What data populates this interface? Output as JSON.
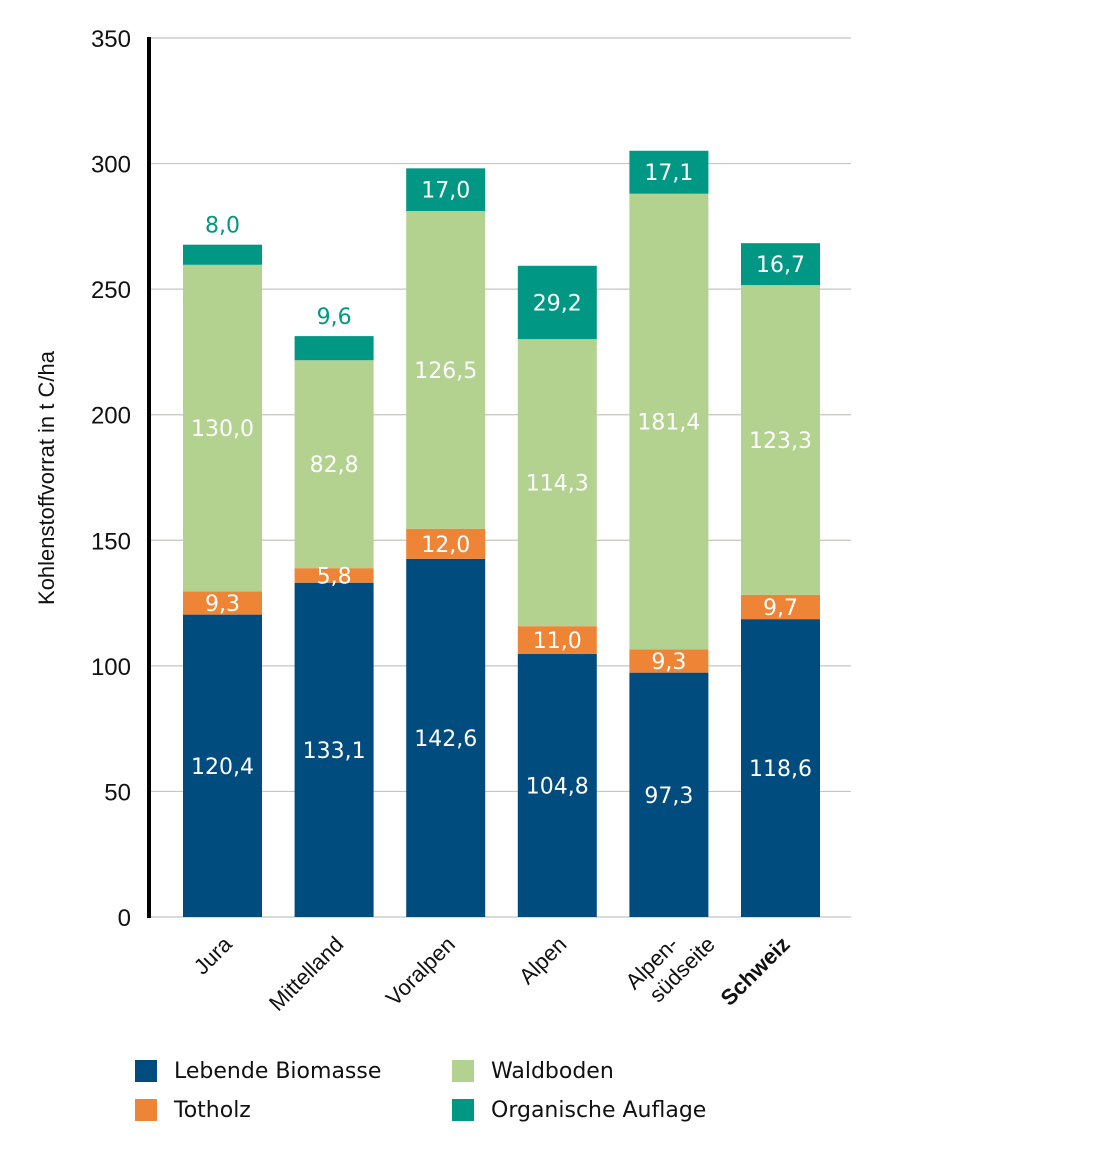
{
  "chart_data": {
    "type": "bar",
    "stacked": true,
    "title": "",
    "xlabel": "",
    "ylabel": "Kohlenstoffvorrat in t C/ha",
    "ylim": [
      0,
      350
    ],
    "yticks": [
      0,
      50,
      100,
      150,
      200,
      250,
      300,
      350
    ],
    "ytick_labels": [
      "0",
      "50",
      "100",
      "150",
      "200",
      "250",
      "300",
      "350"
    ],
    "grid": true,
    "legend_position": "bottom",
    "categories": [
      "Jura",
      "Mittelland",
      "Voralpen",
      "Alpen",
      "Alpen-\nsüdseite",
      "Schweiz"
    ],
    "category_lines": [
      [
        "Jura"
      ],
      [
        "Mittelland"
      ],
      [
        "Voralpen"
      ],
      [
        "Alpen"
      ],
      [
        "Alpen-",
        "südseite"
      ],
      [
        "Schweiz"
      ]
    ],
    "bold_categories": [
      "Schweiz"
    ],
    "series": [
      {
        "name": "Lebende Biomasse",
        "color": "#004c7e",
        "label_color": "#ffffff",
        "values": [
          120.4,
          133.1,
          142.6,
          104.8,
          97.3,
          118.6
        ],
        "labels": [
          "120,4",
          "133,1",
          "142,6",
          "104,8",
          "97,3",
          "118,6"
        ]
      },
      {
        "name": "Totholz",
        "color": "#ee8536",
        "label_color": "#ffffff",
        "values": [
          9.3,
          5.8,
          12.0,
          11.0,
          9.3,
          9.7
        ],
        "labels": [
          "9,3",
          "5,8",
          "12,0",
          "11,0",
          "9,3",
          "9,7"
        ]
      },
      {
        "name": "Waldboden",
        "color": "#b3d28f",
        "label_color": "#ffffff",
        "values": [
          130.0,
          82.8,
          126.5,
          114.3,
          181.4,
          123.3
        ],
        "labels": [
          "130,0",
          "82,8",
          "126,5",
          "114,3",
          "181,4",
          "123,3"
        ]
      },
      {
        "name": "Organische Auflage",
        "color": "#009784",
        "label_color": "#ffffff",
        "outside_label_color": "#009784",
        "values": [
          8.0,
          9.6,
          17.0,
          29.2,
          17.1,
          16.7
        ],
        "labels": [
          "8,0",
          "9,6",
          "17,0",
          "29,2",
          "17,1",
          "16,7"
        ],
        "label_outside": [
          true,
          true,
          false,
          false,
          false,
          false
        ]
      }
    ]
  },
  "legend": {
    "items": [
      {
        "label": "Lebende Biomasse",
        "color": "#004c7e"
      },
      {
        "label": "Waldboden",
        "color": "#b3d28f"
      },
      {
        "label": "Totholz",
        "color": "#ee8536"
      },
      {
        "label": "Organische Auflage",
        "color": "#009784"
      }
    ]
  }
}
